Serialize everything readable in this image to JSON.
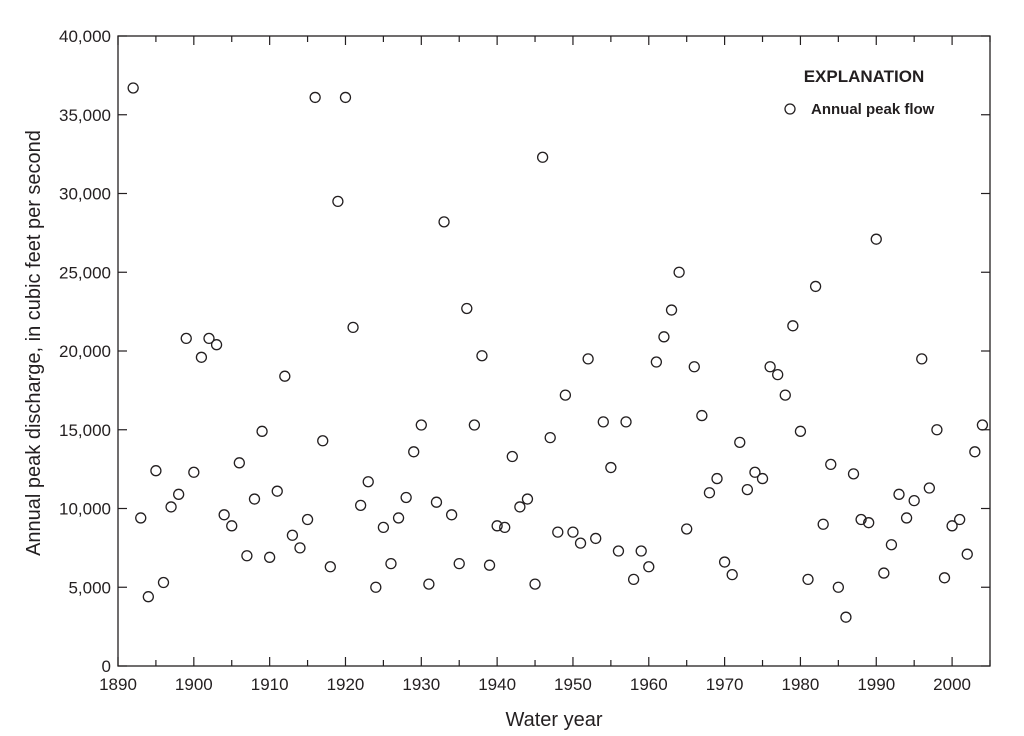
{
  "chart_data": {
    "type": "scatter",
    "xlabel": "Water year",
    "ylabel": "Annual peak discharge, in cubic feet per second",
    "xlim": [
      1890,
      2005
    ],
    "ylim": [
      0,
      40000
    ],
    "xticks": [
      1890,
      1900,
      1910,
      1920,
      1930,
      1940,
      1950,
      1960,
      1970,
      1980,
      1990,
      2000
    ],
    "xtick_labels": [
      "1890",
      "1900",
      "1910",
      "1920",
      "1930",
      "1940",
      "1950",
      "1960",
      "1970",
      "1980",
      "1990",
      "2000"
    ],
    "yticks": [
      0,
      5000,
      10000,
      15000,
      20000,
      25000,
      30000,
      35000,
      40000
    ],
    "ytick_labels": [
      "0",
      "5,000",
      "10,000",
      "15,000",
      "20,000",
      "25,000",
      "30,000",
      "35,000",
      "40,000"
    ],
    "grid": false,
    "legend": {
      "title": "EXPLANATION",
      "position": "top-right"
    },
    "series": [
      {
        "name": "Annual peak flow",
        "marker": "open-circle",
        "points": [
          [
            1892,
            36700
          ],
          [
            1893,
            9400
          ],
          [
            1894,
            4400
          ],
          [
            1895,
            12400
          ],
          [
            1896,
            5300
          ],
          [
            1897,
            10100
          ],
          [
            1898,
            10900
          ],
          [
            1899,
            20800
          ],
          [
            1900,
            12300
          ],
          [
            1901,
            19600
          ],
          [
            1902,
            20800
          ],
          [
            1903,
            20400
          ],
          [
            1904,
            9600
          ],
          [
            1905,
            8900
          ],
          [
            1906,
            12900
          ],
          [
            1907,
            7000
          ],
          [
            1908,
            10600
          ],
          [
            1909,
            14900
          ],
          [
            1910,
            6900
          ],
          [
            1911,
            11100
          ],
          [
            1912,
            18400
          ],
          [
            1913,
            8300
          ],
          [
            1914,
            7500
          ],
          [
            1915,
            9300
          ],
          [
            1916,
            36100
          ],
          [
            1917,
            14300
          ],
          [
            1918,
            6300
          ],
          [
            1919,
            29500
          ],
          [
            1920,
            36100
          ],
          [
            1921,
            21500
          ],
          [
            1922,
            10200
          ],
          [
            1923,
            11700
          ],
          [
            1924,
            5000
          ],
          [
            1925,
            8800
          ],
          [
            1926,
            6500
          ],
          [
            1927,
            9400
          ],
          [
            1928,
            10700
          ],
          [
            1929,
            13600
          ],
          [
            1930,
            15300
          ],
          [
            1931,
            5200
          ],
          [
            1932,
            10400
          ],
          [
            1933,
            28200
          ],
          [
            1934,
            9600
          ],
          [
            1935,
            6500
          ],
          [
            1936,
            22700
          ],
          [
            1937,
            15300
          ],
          [
            1938,
            19700
          ],
          [
            1939,
            6400
          ],
          [
            1940,
            8900
          ],
          [
            1941,
            8800
          ],
          [
            1942,
            13300
          ],
          [
            1943,
            10100
          ],
          [
            1944,
            10600
          ],
          [
            1945,
            5200
          ],
          [
            1946,
            32300
          ],
          [
            1947,
            14500
          ],
          [
            1948,
            8500
          ],
          [
            1949,
            17200
          ],
          [
            1950,
            8500
          ],
          [
            1951,
            7800
          ],
          [
            1952,
            19500
          ],
          [
            1953,
            8100
          ],
          [
            1954,
            15500
          ],
          [
            1955,
            12600
          ],
          [
            1956,
            7300
          ],
          [
            1957,
            15500
          ],
          [
            1958,
            5500
          ],
          [
            1959,
            7300
          ],
          [
            1960,
            6300
          ],
          [
            1961,
            19300
          ],
          [
            1962,
            20900
          ],
          [
            1963,
            22600
          ],
          [
            1964,
            25000
          ],
          [
            1965,
            8700
          ],
          [
            1966,
            19000
          ],
          [
            1967,
            15900
          ],
          [
            1968,
            11000
          ],
          [
            1969,
            11900
          ],
          [
            1970,
            6600
          ],
          [
            1971,
            5800
          ],
          [
            1972,
            14200
          ],
          [
            1973,
            11200
          ],
          [
            1974,
            12300
          ],
          [
            1975,
            11900
          ],
          [
            1976,
            19000
          ],
          [
            1977,
            18500
          ],
          [
            1978,
            17200
          ],
          [
            1979,
            21600
          ],
          [
            1980,
            14900
          ],
          [
            1981,
            5500
          ],
          [
            1982,
            24100
          ],
          [
            1983,
            9000
          ],
          [
            1984,
            12800
          ],
          [
            1985,
            5000
          ],
          [
            1986,
            3100
          ],
          [
            1987,
            12200
          ],
          [
            1988,
            9300
          ],
          [
            1989,
            9100
          ],
          [
            1990,
            27100
          ],
          [
            1991,
            5900
          ],
          [
            1992,
            7700
          ],
          [
            1993,
            10900
          ],
          [
            1994,
            9400
          ],
          [
            1995,
            10500
          ],
          [
            1996,
            19500
          ],
          [
            1997,
            11300
          ],
          [
            1998,
            15000
          ],
          [
            1999,
            5600
          ],
          [
            2000,
            8900
          ],
          [
            2001,
            9300
          ],
          [
            2002,
            7100
          ],
          [
            2003,
            13600
          ],
          [
            2004,
            15300
          ]
        ]
      }
    ]
  }
}
